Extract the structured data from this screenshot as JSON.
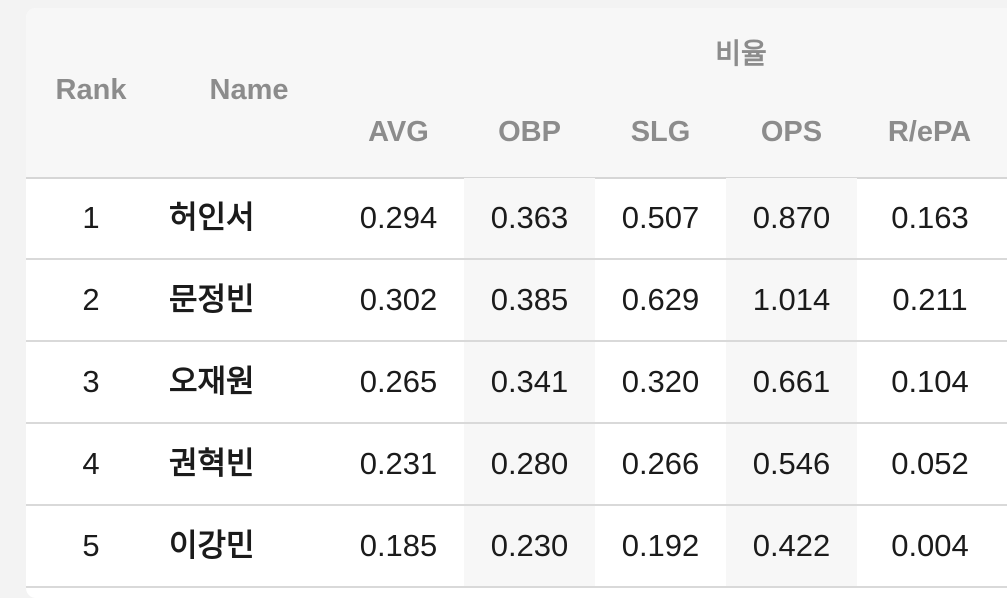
{
  "header": {
    "rank": "Rank",
    "name": "Name",
    "group": "비율",
    "columns": [
      "AVG",
      "OBP",
      "SLG",
      "OPS",
      "R/ePA"
    ]
  },
  "rows": [
    {
      "rank": "1",
      "name": "허인서",
      "avg": "0.294",
      "obp": "0.363",
      "slg": "0.507",
      "ops": "0.870",
      "repa": "0.163"
    },
    {
      "rank": "2",
      "name": "문정빈",
      "avg": "0.302",
      "obp": "0.385",
      "slg": "0.629",
      "ops": "1.014",
      "repa": "0.211"
    },
    {
      "rank": "3",
      "name": "오재원",
      "avg": "0.265",
      "obp": "0.341",
      "slg": "0.320",
      "ops": "0.661",
      "repa": "0.104"
    },
    {
      "rank": "4",
      "name": "권혁빈",
      "avg": "0.231",
      "obp": "0.280",
      "slg": "0.266",
      "ops": "0.546",
      "repa": "0.052"
    },
    {
      "rank": "5",
      "name": "이강민",
      "avg": "0.185",
      "obp": "0.230",
      "slg": "0.192",
      "ops": "0.422",
      "repa": "0.004"
    }
  ]
}
